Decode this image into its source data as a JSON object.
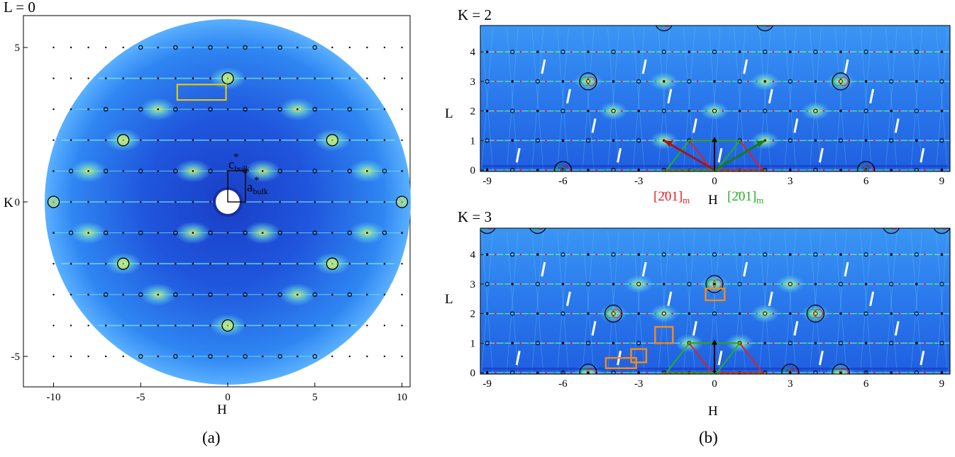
{
  "colors": {
    "background_deep": "#1f4fd6",
    "background_mid": "#2e7cf0",
    "background_light": "#5fb3ff",
    "streak": "#7fe8e0",
    "peak": "#e8f060",
    "black_ring": "#000000",
    "red": "#e02020",
    "green": "#22b022",
    "orange": "#f08a1e",
    "yellow": "#f0d000"
  },
  "captions": {
    "a": "(a)",
    "b": "(b)"
  },
  "chart_data": [
    {
      "type": "scatter",
      "panel": "a",
      "title": "L = 0",
      "xlabel": "H",
      "ylabel": "K",
      "xlim": [
        -10.5,
        10.5
      ],
      "ylim": [
        -5.8,
        5.8
      ],
      "xticks": [
        "-10",
        "-5",
        "0",
        "5",
        "10"
      ],
      "yticks": [
        "-5",
        "0",
        "5"
      ],
      "labels": {
        "c": "c",
        "c_sub": "bulk",
        "a": "a",
        "a_sub": "bulk",
        "star": "*"
      },
      "rings": [
        [
          0,
          4
        ],
        [
          0,
          -4
        ],
        [
          -6,
          2
        ],
        [
          6,
          2
        ],
        [
          -6,
          -2
        ],
        [
          6,
          -2
        ],
        [
          -10,
          0
        ],
        [
          10,
          0
        ]
      ],
      "yellow_box": {
        "h": [
          -2.9,
          -0.1
        ],
        "k": [
          3.3,
          3.8
        ]
      }
    },
    {
      "type": "scatter",
      "panel": "b-top",
      "title": "K = 2",
      "xlabel": "H",
      "ylabel": "L",
      "xlim": [
        -9.3,
        9.3
      ],
      "ylim": [
        -0.2,
        4.8
      ],
      "xticks": [
        "-9",
        "-6",
        "-3",
        "0",
        "3",
        "6",
        "9"
      ],
      "yticks": [
        "0",
        "1",
        "2",
        "3",
        "4"
      ],
      "labels": {
        "red": "[2̄01]",
        "red_sub": "m",
        "green": "[2̄01]",
        "green_sub": "m"
      },
      "rings_big": [
        [
          -5,
          3
        ],
        [
          5,
          3
        ],
        [
          -6,
          0
        ],
        [
          6,
          0
        ],
        [
          -2,
          5
        ],
        [
          2,
          5
        ]
      ]
    },
    {
      "type": "scatter",
      "panel": "b-bottom",
      "title": "K = 3",
      "xlabel": "H",
      "ylabel": "L",
      "xlim": [
        -9.3,
        9.3
      ],
      "ylim": [
        -0.2,
        4.8
      ],
      "xticks": [
        "-9",
        "-6",
        "-3",
        "0",
        "3",
        "6",
        "9"
      ],
      "yticks": [
        "0",
        "1",
        "2",
        "3",
        "4"
      ],
      "rings_big": [
        [
          -5,
          0
        ],
        [
          3,
          0
        ],
        [
          5,
          0
        ],
        [
          0,
          3
        ],
        [
          -4,
          2
        ],
        [
          4,
          2
        ],
        [
          -9,
          5
        ],
        [
          9,
          5
        ],
        [
          -7,
          5
        ],
        [
          7,
          5
        ]
      ],
      "orange_boxes": [
        [
          -4.3,
          0.15,
          1.2,
          0.35
        ],
        [
          -3.3,
          0.35,
          0.6,
          0.45
        ],
        [
          -2.35,
          1.0,
          0.7,
          0.55
        ],
        [
          -0.35,
          2.45,
          0.75,
          0.4
        ]
      ]
    }
  ]
}
